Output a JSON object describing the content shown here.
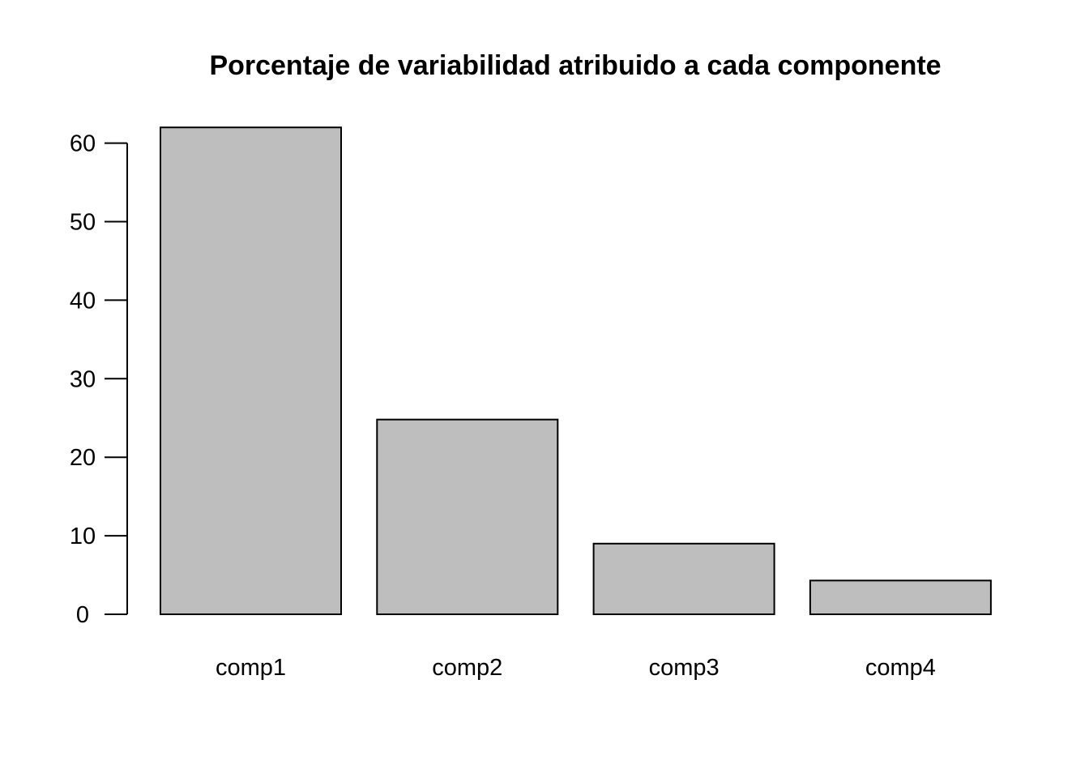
{
  "chart_data": {
    "type": "bar",
    "title": "Porcentaje de variabilidad atribuido a cada componente",
    "xlabel": "",
    "ylabel": "",
    "categories": [
      "comp1",
      "comp2",
      "comp3",
      "comp4"
    ],
    "values": [
      62.0,
      24.8,
      9.0,
      4.3
    ],
    "ylim": [
      0,
      62
    ],
    "yticks": [
      0,
      10,
      20,
      30,
      40,
      50,
      60
    ],
    "ytick_labels": [
      "0",
      "10",
      "20",
      "30",
      "40",
      "50",
      "60"
    ],
    "bar_color": "#bebebe",
    "grid": false,
    "legend": "none"
  }
}
